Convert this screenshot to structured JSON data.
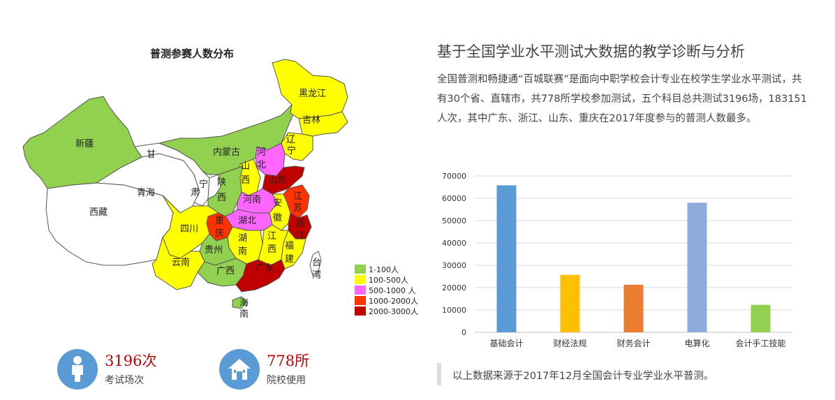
{
  "map": {
    "title": "普测参赛人数分布",
    "legend": [
      {
        "label": "1-100人",
        "color": "#92d050"
      },
      {
        "label": "100-500人",
        "color": "#ffff00"
      },
      {
        "label": "500-1000 人",
        "color": "#ff66ff"
      },
      {
        "label": "1000-2000人",
        "color": "#ff3300"
      },
      {
        "label": "2000-3000人",
        "color": "#c00000"
      }
    ],
    "regions": {
      "xinjiang": "新疆",
      "gansu_a": "甘",
      "gansu_b": "肃",
      "qinghai": "青海",
      "xizang": "西藏",
      "neimenggu": "内蒙古",
      "heilongjiang": "黑龙江",
      "jilin": "吉林",
      "liaoning_a": "辽",
      "liaoning_b": "宁",
      "hebei_a": "河",
      "hebei_b": "北",
      "shanxi_a": "山",
      "shanxi_b": "西",
      "ningxia": "宁",
      "shaanxi_a": "陕",
      "shaanxi_b": "西",
      "shandong": "山东",
      "henan": "河南",
      "jiangsu_a": "江",
      "jiangsu_b": "苏",
      "anhui_a": "安",
      "anhui_b": "徽",
      "hubei": "湖北",
      "sichuan": "四川",
      "chongqing_a": "重",
      "chongqing_b": "庆",
      "zhejiang_a": "浙",
      "zhejiang_b": "江",
      "hunan_a": "湖",
      "hunan_b": "南",
      "jiangxi_a": "江",
      "jiangxi_b": "西",
      "fujian_a": "福",
      "fujian_b": "建",
      "guizhou": "贵州",
      "yunnan": "云南",
      "guangxi": "广西",
      "guangdong": "广东",
      "taiwan_a": "台",
      "taiwan_b": "湾",
      "hainan_a": "海",
      "hainan_b": "南"
    }
  },
  "stats": [
    {
      "value": "3196次",
      "label": "考试场次",
      "icon": "person-icon"
    },
    {
      "value": "778所",
      "label": "院校使用",
      "icon": "house-icon"
    }
  ],
  "article": {
    "heading": "基于全国学业水平测试大数据的教学诊断与分析",
    "paragraph": "全国普测和畅捷通“百城联赛”是面向中职学校会计专业在校学生学业水平测试，共有30个省、直辖市，共778所学校参加测试，五个科目总共测试3196场，183151人次，其中广东、浙江、山东、重庆在2017年度参与的普测人数最多。",
    "note": "以上数据来源于2017年12月全国会计专业学业水平普测。"
  },
  "chart_data": {
    "type": "bar",
    "categories": [
      "基础会计",
      "财经法规",
      "财务会计",
      "电算化",
      "会计手工技能"
    ],
    "values": [
      65800,
      25700,
      21300,
      58000,
      12300
    ],
    "colors": [
      "#5b9bd5",
      "#ffc000",
      "#ed7d31",
      "#8faadc",
      "#92d050"
    ],
    "ylim": [
      0,
      70000
    ],
    "yticks": [
      0,
      10000,
      20000,
      30000,
      40000,
      50000,
      60000,
      70000
    ],
    "grid": true
  }
}
